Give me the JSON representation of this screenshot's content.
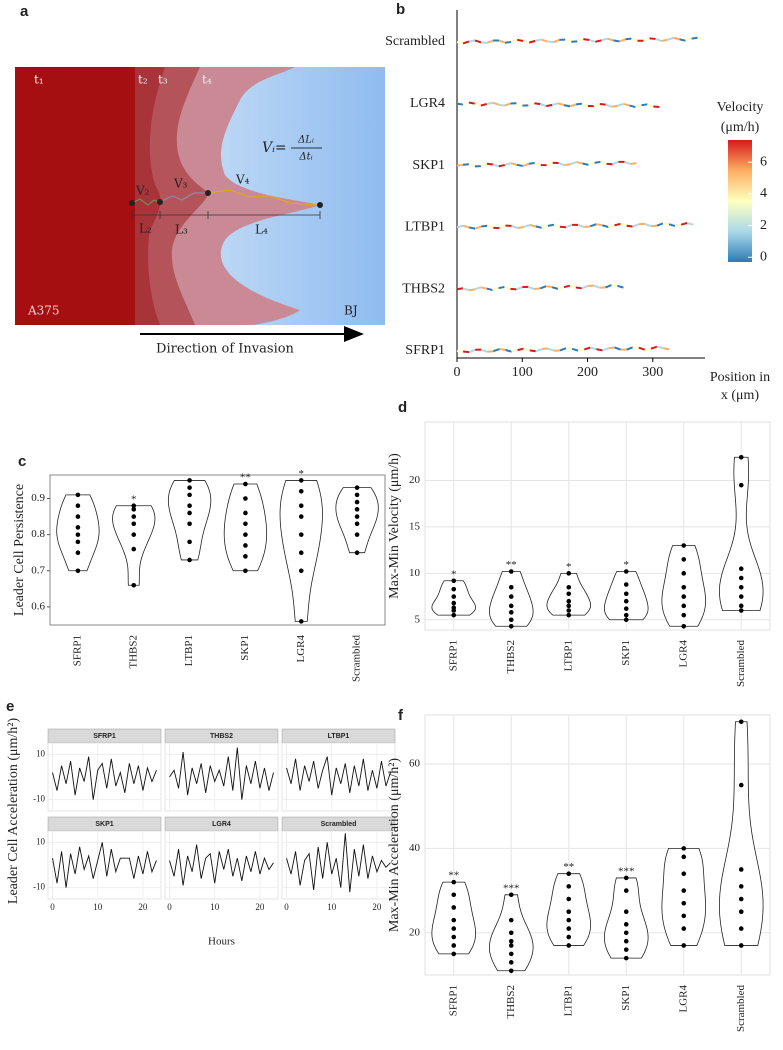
{
  "chart_data": [
    {
      "type": "diagram",
      "label": "a",
      "times": [
        "t₁",
        "t₂",
        "t₃",
        "t₄"
      ],
      "velocities": [
        "V₂",
        "V₃",
        "V₄"
      ],
      "lengths": [
        "L₂",
        "L₃",
        "L₄"
      ],
      "formula": {
        "lhs": "Vᵢ=",
        "num": "ΔLᵢ",
        "den": "Δtᵢ"
      },
      "left_cell": "A375",
      "right_cell": "BJ",
      "arrow_label": "Direction of Invasion"
    },
    {
      "type": "track",
      "label": "b",
      "categories": [
        "Scrambled",
        "LGR4",
        "SKP1",
        "LTBP1",
        "THBS2",
        "SFRP1"
      ],
      "values": [
        378,
        310,
        275,
        362,
        255,
        325
      ],
      "xlim": [
        0,
        380
      ],
      "xticks": [
        0,
        100,
        200,
        300
      ],
      "xlabel": [
        "Position in",
        "x (μm)"
      ],
      "colorbar": {
        "title": [
          "Velocity",
          "(μm/h)"
        ],
        "clim": [
          -0.3,
          7.4
        ],
        "ticks": [
          0,
          2,
          4,
          6
        ],
        "colors": [
          "#2c7bb6",
          "#abd9e9",
          "#ffffbf",
          "#fdae61",
          "#d7191c"
        ]
      }
    },
    {
      "type": "violin",
      "label": "c",
      "ylabel": "Leader Cell Persistence",
      "categories": [
        "SFRP1",
        "THBS2",
        "LTBP1",
        "SKP1",
        "LGR4",
        "Scrambled"
      ],
      "values": [
        [
          0.7,
          0.75,
          0.78,
          0.8,
          0.82,
          0.85,
          0.88,
          0.91
        ],
        [
          0.66,
          0.76,
          0.8,
          0.83,
          0.85,
          0.87,
          0.88
        ],
        [
          0.73,
          0.78,
          0.83,
          0.86,
          0.88,
          0.91,
          0.93,
          0.95
        ],
        [
          0.7,
          0.74,
          0.77,
          0.8,
          0.83,
          0.86,
          0.9,
          0.94
        ],
        [
          0.56,
          0.7,
          0.75,
          0.8,
          0.85,
          0.88,
          0.92,
          0.95
        ],
        [
          0.75,
          0.8,
          0.83,
          0.85,
          0.87,
          0.89,
          0.91,
          0.93
        ]
      ],
      "annotations": [
        null,
        "*",
        null,
        "**",
        "*",
        null
      ],
      "ylim": [
        0.55,
        0.965
      ],
      "yticks": [
        0.6,
        0.7,
        0.8,
        0.9
      ],
      "grid": false,
      "border": true
    },
    {
      "type": "violin",
      "label": "d",
      "ylabel": "Max-Min Velocity (μm/h)",
      "categories": [
        "SFRP1",
        "THBS2",
        "LTBP1",
        "SKP1",
        "LGR4",
        "Scrambled"
      ],
      "values": [
        [
          5.5,
          6,
          6.3,
          6.8,
          7.5,
          8.3,
          9.2
        ],
        [
          4.3,
          5,
          5.8,
          6.5,
          7.5,
          8.5,
          10.2
        ],
        [
          5.5,
          6,
          6.5,
          7,
          7.8,
          8.5,
          10
        ],
        [
          5,
          5.5,
          6.2,
          7,
          7.8,
          8.8,
          10.2
        ],
        [
          4.3,
          5.5,
          6.5,
          7.5,
          8.5,
          10,
          11.5,
          13
        ],
        [
          6,
          6.5,
          7.5,
          8.5,
          9.5,
          10.5,
          19.5,
          22.5
        ]
      ],
      "annotations": [
        "*",
        "**",
        "*",
        "*",
        null,
        null
      ],
      "ylim": [
        3.9,
        26.3
      ],
      "yticks": [
        5,
        10,
        15,
        20
      ],
      "grid": true,
      "border": false
    },
    {
      "type": "facet-line",
      "label": "e",
      "ylabel": "Leader Cell Acceleration (μm/h²)",
      "xlabel": "Hours",
      "x": [
        0,
        1,
        2,
        3,
        4,
        5,
        6,
        7,
        8,
        9,
        10,
        11,
        12,
        13,
        14,
        15,
        16,
        17,
        18,
        19,
        20,
        21,
        22,
        23
      ],
      "xlim": [
        -1,
        24
      ],
      "xticks": [
        0,
        10,
        20
      ],
      "ylim": [
        -15,
        15
      ],
      "yticks": [
        -10,
        10
      ],
      "series": [
        {
          "name": "SFRP1",
          "values": [
            2,
            -6,
            5,
            -3,
            7,
            -8,
            4,
            -2,
            9,
            -10,
            3,
            6,
            -5,
            8,
            -4,
            2,
            -7,
            6,
            -3,
            5,
            -6,
            4,
            -2,
            3
          ]
        },
        {
          "name": "THBS2",
          "values": [
            0,
            3,
            -5,
            11,
            -8,
            4,
            -3,
            6,
            -7,
            5,
            -2,
            3,
            -4,
            9,
            -6,
            13,
            -10,
            5,
            -3,
            7,
            -5,
            4,
            -6,
            2
          ]
        },
        {
          "name": "LTBP1",
          "values": [
            4,
            -3,
            8,
            -6,
            5,
            -2,
            7,
            -5,
            3,
            9,
            -8,
            4,
            -3,
            6,
            -7,
            5,
            -4,
            8,
            -6,
            3,
            -5,
            7,
            -4,
            2
          ]
        },
        {
          "name": "SKP1",
          "values": [
            3,
            -8,
            6,
            -10,
            5,
            -4,
            8,
            -2,
            4,
            -6,
            2,
            10,
            -5,
            7,
            -3,
            3,
            3,
            3,
            -6,
            4,
            -4,
            6,
            -3,
            2
          ]
        },
        {
          "name": "LGR4",
          "values": [
            2,
            -5,
            7,
            -9,
            4,
            -3,
            9,
            -6,
            3,
            5,
            -8,
            6,
            -2,
            7,
            -5,
            3,
            -7,
            4,
            -3,
            6,
            -4,
            3,
            -2,
            1
          ]
        },
        {
          "name": "Scrambled",
          "values": [
            3,
            -4,
            6,
            -9,
            2,
            5,
            -11,
            8,
            -6,
            10,
            -4,
            3,
            -10,
            14,
            -12,
            7,
            -5,
            9,
            -6,
            4,
            -3,
            2,
            -1,
            1
          ]
        }
      ]
    },
    {
      "type": "violin",
      "label": "f",
      "ylabel": "Max-Min Acceleration (μm/h²)",
      "categories": [
        "SFRP1",
        "THBS2",
        "LTBP1",
        "SKP1",
        "LGR4",
        "Scrambled"
      ],
      "values": [
        [
          15,
          17,
          19,
          21,
          23,
          26,
          29,
          32
        ],
        [
          11,
          13,
          15,
          17,
          18,
          20,
          23,
          29
        ],
        [
          17,
          19,
          21,
          23,
          25,
          28,
          31,
          34
        ],
        [
          14,
          16,
          18,
          20,
          22,
          25,
          30,
          33
        ],
        [
          17,
          21,
          24,
          27,
          30,
          34,
          38,
          40
        ],
        [
          17,
          21,
          25,
          28,
          31,
          35,
          55,
          70
        ]
      ],
      "annotations": [
        "**",
        "***",
        "**",
        "***",
        null,
        null
      ],
      "ylim": [
        10,
        71.6
      ],
      "yticks": [
        20,
        40,
        60
      ],
      "grid": true,
      "border": false
    }
  ]
}
